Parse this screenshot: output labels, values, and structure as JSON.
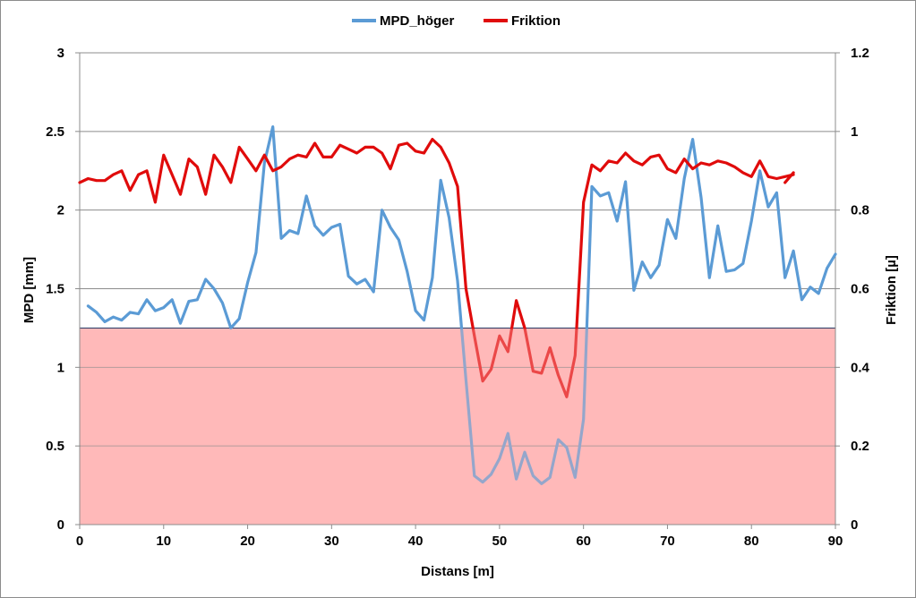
{
  "chart_data": {
    "type": "line",
    "title": "",
    "xlabel": "Distans [m]",
    "ylabel": "MPD [mm]",
    "y2label": "Friktion [µ]",
    "xlim": [
      0,
      90
    ],
    "ylim": [
      0,
      3
    ],
    "y2lim": [
      0,
      1.2
    ],
    "xticks": [
      "0",
      "10",
      "20",
      "30",
      "40",
      "50",
      "60",
      "70",
      "80",
      "90"
    ],
    "yticks": [
      "0",
      "0.5",
      "1",
      "1.5",
      "2",
      "2.5",
      "3"
    ],
    "y2ticks": [
      "0",
      "0.2",
      "0.4",
      "0.6",
      "0.8",
      "1",
      "1.2"
    ],
    "grid": "horizontal",
    "legend_position": "top-center",
    "threshold_band": {
      "y_from": 0,
      "y_to": 1.25,
      "color": "#ffb9b9",
      "border": "#1f3864"
    },
    "series": [
      {
        "name": "MPD_höger",
        "axis": "left",
        "color": "#5b9bd5",
        "x": [
          1,
          2,
          3,
          4,
          5,
          6,
          7,
          8,
          9,
          10,
          11,
          12,
          13,
          14,
          15,
          16,
          17,
          18,
          19,
          20,
          21,
          22,
          23,
          24,
          25,
          26,
          27,
          28,
          29,
          30,
          31,
          32,
          33,
          34,
          35,
          36,
          37,
          38,
          39,
          40,
          41,
          42,
          43,
          44,
          45,
          46,
          47,
          48,
          49,
          50,
          51,
          52,
          53,
          54,
          55,
          56,
          57,
          58,
          59,
          60,
          61,
          62,
          63,
          64,
          65,
          66,
          67,
          68,
          69,
          70,
          71,
          72,
          73,
          74,
          75,
          76,
          77,
          78,
          79,
          80,
          81,
          82,
          83,
          84,
          85,
          86,
          87,
          88,
          89,
          90
        ],
        "values": [
          1.39,
          1.35,
          1.29,
          1.32,
          1.3,
          1.35,
          1.34,
          1.43,
          1.36,
          1.38,
          1.43,
          1.28,
          1.42,
          1.43,
          1.56,
          1.5,
          1.41,
          1.25,
          1.31,
          1.54,
          1.73,
          2.3,
          2.53,
          1.82,
          1.87,
          1.85,
          2.09,
          1.9,
          1.84,
          1.89,
          1.91,
          1.58,
          1.53,
          1.56,
          1.48,
          2.0,
          1.89,
          1.81,
          1.61,
          1.36,
          1.3,
          1.57,
          2.19,
          1.95,
          1.55,
          0.92,
          0.31,
          0.27,
          0.32,
          0.42,
          0.58,
          0.29,
          0.46,
          0.31,
          0.26,
          0.3,
          0.54,
          0.49,
          0.3,
          0.67,
          2.15,
          2.09,
          2.11,
          1.93,
          2.18,
          1.49,
          1.67,
          1.57,
          1.65,
          1.94,
          1.82,
          2.2,
          2.45,
          2.08,
          1.57,
          1.9,
          1.61,
          1.62,
          1.66,
          1.93,
          2.25,
          2.02,
          2.11,
          1.57,
          1.74,
          1.43,
          1.51,
          1.47,
          1.63,
          1.72
        ]
      },
      {
        "name": "Friktion",
        "axis": "right",
        "color": "#e00b0b",
        "x": [
          0,
          1,
          2,
          3,
          4,
          5,
          6,
          7,
          8,
          9,
          10,
          11,
          12,
          13,
          14,
          15,
          16,
          17,
          18,
          19,
          20,
          21,
          22,
          23,
          24,
          25,
          26,
          27,
          28,
          29,
          30,
          31,
          32,
          33,
          34,
          35,
          36,
          37,
          38,
          39,
          40,
          41,
          42,
          43,
          44,
          45,
          46,
          47,
          48,
          49,
          50,
          51,
          52,
          53,
          54,
          55,
          56,
          57,
          58,
          59,
          60,
          61,
          62,
          63,
          64,
          65,
          66,
          67,
          68,
          69,
          70,
          71,
          72,
          73,
          74,
          75,
          76,
          77,
          78,
          79,
          80,
          81,
          82,
          83,
          84,
          85
        ],
        "values": [
          0.87,
          0.88,
          0.875,
          0.875,
          0.89,
          0.9,
          0.85,
          0.89,
          0.9,
          0.82,
          0.94,
          0.89,
          0.84,
          0.93,
          0.91,
          0.84,
          0.94,
          0.91,
          0.87,
          0.96,
          0.93,
          0.9,
          0.94,
          0.9,
          0.91,
          0.93,
          0.94,
          0.935,
          0.97,
          0.935,
          0.935,
          0.965,
          0.955,
          0.945,
          0.96,
          0.96,
          0.945,
          0.905,
          0.965,
          0.97,
          0.95,
          0.945,
          0.98,
          0.96,
          0.92,
          0.86,
          0.6,
          0.48,
          0.365,
          0.395,
          0.48,
          0.44,
          0.57,
          0.5,
          0.39,
          0.385,
          0.45,
          0.38,
          0.325,
          0.43,
          0.82,
          0.915,
          0.9,
          0.925,
          0.92,
          0.945,
          0.925,
          0.915,
          0.935,
          0.94,
          0.905,
          0.895,
          0.93,
          0.905,
          0.92,
          0.915,
          0.925,
          0.92,
          0.91,
          0.895,
          0.885,
          0.925,
          0.885,
          0.88,
          0.885,
          0.89
        ]
      },
      {
        "name": "",
        "axis": "right",
        "color": "#e00b0b",
        "x": [
          84,
          85
        ],
        "values": [
          0.87,
          0.895
        ]
      }
    ]
  }
}
